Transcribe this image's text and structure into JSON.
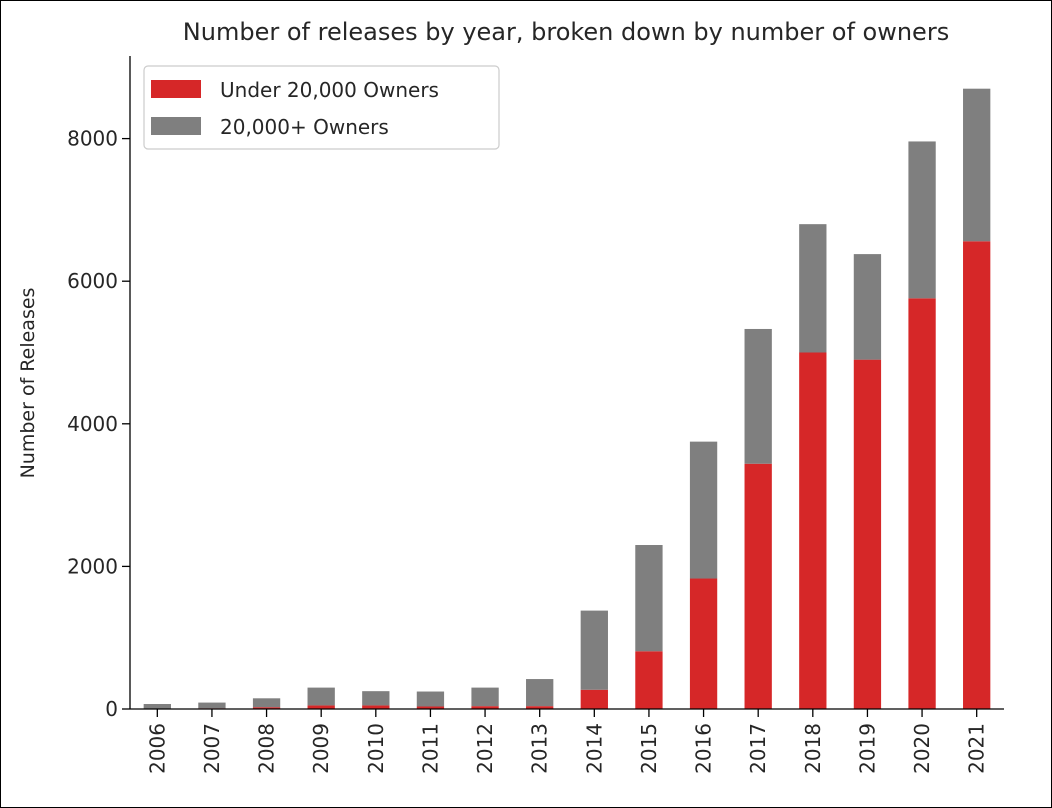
{
  "chart_data": {
    "type": "bar",
    "stacked": true,
    "title": "Number of releases by year, broken down by number of owners",
    "xlabel": "",
    "ylabel": "Number of Releases",
    "ylim": [
      0,
      9100
    ],
    "yticks": [
      0,
      2000,
      4000,
      6000,
      8000
    ],
    "ytick_labels": [
      "0",
      "2000",
      "4000",
      "6000",
      "8000"
    ],
    "grid": false,
    "legend_position": "top-left",
    "categories": [
      "2006",
      "2007",
      "2008",
      "2009",
      "2010",
      "2011",
      "2012",
      "2013",
      "2014",
      "2015",
      "2016",
      "2017",
      "2018",
      "2019",
      "2020",
      "2021"
    ],
    "series": [
      {
        "name": "Under 20,000 Owners",
        "color": "#d62728",
        "values": [
          5,
          10,
          25,
          50,
          50,
          35,
          40,
          40,
          270,
          810,
          1830,
          3440,
          5000,
          4900,
          5760,
          6560
        ]
      },
      {
        "name": "20,000+ Owners",
        "color": "#7f7f7f",
        "values": [
          65,
          80,
          125,
          250,
          200,
          210,
          260,
          380,
          1110,
          1490,
          1920,
          1890,
          1800,
          1480,
          2200,
          2140
        ]
      }
    ]
  }
}
